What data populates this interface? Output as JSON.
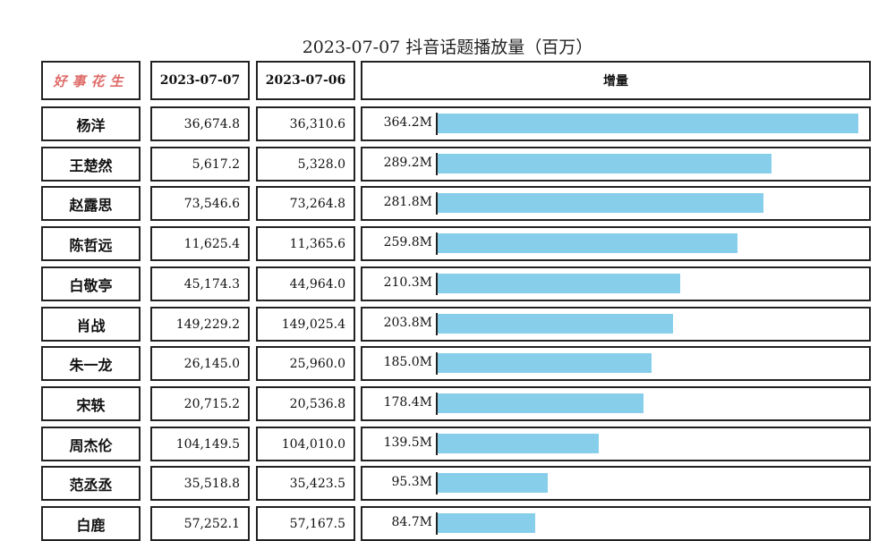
{
  "title": "2023-07-07 抖音话题播放量（百万）",
  "header": {
    "logo_text": "好事花生",
    "col_date1": "2023-07-07",
    "col_date2": "2023-07-06",
    "col_increase": "增量"
  },
  "colors": {
    "bar": "#87ceeb",
    "border": "#222222",
    "logo": "#d9534f"
  },
  "rows": [
    {
      "name": "杨洋",
      "v1": "36,674.8",
      "v2": "36,310.6",
      "inc": "364.2M"
    },
    {
      "name": "王楚然",
      "v1": "5,617.2",
      "v2": "5,328.0",
      "inc": "289.2M"
    },
    {
      "name": "赵露思",
      "v1": "73,546.6",
      "v2": "73,264.8",
      "inc": "281.8M"
    },
    {
      "name": "陈哲远",
      "v1": "11,625.4",
      "v2": "11,365.6",
      "inc": "259.8M"
    },
    {
      "name": "白敬亭",
      "v1": "45,174.3",
      "v2": "44,964.0",
      "inc": "210.3M"
    },
    {
      "name": "肖战",
      "v1": "149,229.2",
      "v2": "149,025.4",
      "inc": "203.8M"
    },
    {
      "name": "朱一龙",
      "v1": "26,145.0",
      "v2": "25,960.0",
      "inc": "185.0M"
    },
    {
      "name": "宋轶",
      "v1": "20,715.2",
      "v2": "20,536.8",
      "inc": "178.4M"
    },
    {
      "name": "周杰伦",
      "v1": "104,149.5",
      "v2": "104,010.0",
      "inc": "139.5M"
    },
    {
      "name": "范丞丞",
      "v1": "35,518.8",
      "v2": "35,423.5",
      "inc": "95.3M"
    },
    {
      "name": "白鹿",
      "v1": "57,252.1",
      "v2": "57,167.5",
      "inc": "84.7M"
    }
  ],
  "chart_data": {
    "type": "bar",
    "orientation": "horizontal",
    "title": "2023-07-07 抖音话题播放量（百万）",
    "categories": [
      "杨洋",
      "王楚然",
      "赵露思",
      "陈哲远",
      "白敬亭",
      "肖战",
      "朱一龙",
      "宋轶",
      "周杰伦",
      "范丞丞",
      "白鹿"
    ],
    "series": [
      {
        "name": "增量",
        "values": [
          364.2,
          289.2,
          281.8,
          259.8,
          210.3,
          203.8,
          185.0,
          178.4,
          139.5,
          95.3,
          84.7
        ]
      }
    ],
    "columns": [
      {
        "name": "2023-07-07",
        "values": [
          36674.8,
          5617.2,
          73546.6,
          11625.4,
          45174.3,
          149229.2,
          26145.0,
          20715.2,
          104149.5,
          35518.8,
          57252.1
        ]
      },
      {
        "name": "2023-07-06",
        "values": [
          36310.6,
          5328.0,
          73264.8,
          11365.6,
          44964.0,
          149025.4,
          25960.0,
          20536.8,
          104010.0,
          35423.5,
          57167.5
        ]
      }
    ],
    "xlim": [
      0,
      364.2
    ],
    "grid": false,
    "legend": "none"
  }
}
